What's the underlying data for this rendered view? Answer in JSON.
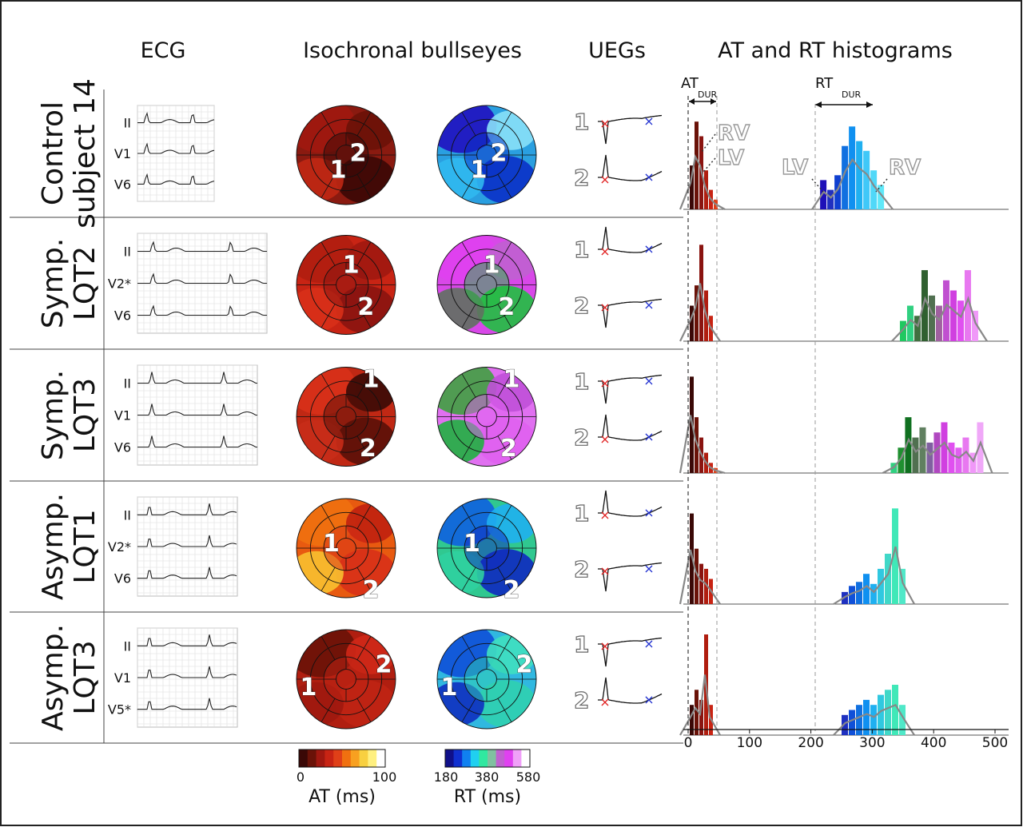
{
  "headers": {
    "ecg": "ECG",
    "bullseyes": "Isochronal bullseyes",
    "uegs": "UEGs",
    "histograms": "AT and RT histograms"
  },
  "rows": [
    {
      "label1": "Control",
      "label2": "subject 14",
      "leads": [
        "II",
        "V1",
        "V6"
      ],
      "at_base": "#8a1a10",
      "rt_base": "#2a9fe0",
      "at_regions": [
        "#a01810",
        "#3a0806",
        "#c02814",
        "#6a1208"
      ],
      "rt_regions": [
        "#2010c0",
        "#0a30c8",
        "#30b8f0",
        "#88e0f8"
      ],
      "num_positions_at": [
        [
          0.42,
          0.65
        ],
        [
          0.62,
          0.48
        ]
      ],
      "hist_at": [
        0.45,
        0.9,
        0.75,
        0.4,
        0.2,
        0.1
      ],
      "hist_rt": [
        0.3,
        0.2,
        0.35,
        0.65,
        0.85,
        0.7,
        0.6,
        0.4,
        0.25
      ],
      "hist_rt_start": 215,
      "rt_colors": [
        "#1e10b8",
        "#2030c0",
        "#1040d0",
        "#1070e0",
        "#1090f0",
        "#20b0f0",
        "#40c8f8",
        "#50d8f8",
        "#60e8f8"
      ]
    },
    {
      "label1": "Symp.",
      "label2": "LQT2",
      "leads": [
        "II",
        "V2*",
        "V6"
      ],
      "at_base": "#c82414",
      "rt_base": "#d848e8",
      "at_regions": [
        "#b01e10",
        "#8a1410",
        "#d83018",
        "#a01810"
      ],
      "rt_regions": [
        "#e040f0",
        "#20c040",
        "#607060",
        "#c060d0"
      ],
      "num_positions_at": [
        [
          0.55,
          0.3
        ],
        [
          0.7,
          0.72
        ]
      ],
      "hist_at": [
        0.35,
        0.55,
        0.95,
        0.5,
        0.25
      ],
      "hist_rt": [
        0.2,
        0.35,
        0.25,
        0.7,
        0.45,
        0.35,
        0.6,
        0.5,
        0.4,
        0.7,
        0.3
      ],
      "hist_rt_start": 345,
      "rt_colors": [
        "#20c860",
        "#30d080",
        "#407040",
        "#306030",
        "#507050",
        "#a060a0",
        "#c050d0",
        "#d040e0",
        "#e050f0",
        "#e878f0",
        "#f098f8"
      ]
    },
    {
      "label1": "Symp.",
      "label2": "LQT3",
      "leads": [
        "II",
        "V1",
        "V6"
      ],
      "at_base": "#c02814",
      "rt_base": "#e070f0",
      "at_regions": [
        "#d83018",
        "#5a1008",
        "#c82c18",
        "#3a0a06"
      ],
      "rt_regions": [
        "#40a040",
        "#e060f0",
        "#20b040",
        "#c050d8"
      ],
      "num_positions_at": [
        [
          0.75,
          0.12
        ],
        [
          0.72,
          0.82
        ]
      ],
      "hist_at": [
        0.95,
        0.55,
        0.35,
        0.2,
        0.1,
        0.05
      ],
      "hist_rt": [
        0.1,
        0.25,
        0.55,
        0.35,
        0.45,
        0.3,
        0.4,
        0.5,
        0.3,
        0.25,
        0.35,
        0.2,
        0.5
      ],
      "hist_rt_start": 330,
      "rt_colors": [
        "#30d080",
        "#209030",
        "#107020",
        "#507050",
        "#608060",
        "#8060a0",
        "#b048c0",
        "#d040e0",
        "#e050f0",
        "#e060f0",
        "#e878f0",
        "#f098f8",
        "#f0a8f8"
      ]
    },
    {
      "label1": "Asymp.",
      "label2": "LQT1",
      "leads": [
        "II",
        "V2*",
        "V6"
      ],
      "at_base": "#e85a10",
      "rt_base": "#30c890",
      "at_regions": [
        "#f07010",
        "#d83018",
        "#f8c030",
        "#c02010"
      ],
      "rt_regions": [
        "#1060e0",
        "#1028c0",
        "#30d0a0",
        "#20b0f0"
      ],
      "num_positions_at": [
        [
          0.35,
          0.45
        ],
        [
          0.75,
          0.92
        ]
      ],
      "hist_at": [
        0.9,
        0.55,
        0.4,
        0.35,
        0.25
      ],
      "hist_rt": [
        0.12,
        0.18,
        0.22,
        0.3,
        0.2,
        0.35,
        0.5,
        0.95,
        0.35
      ],
      "hist_rt_start": 250,
      "rt_colors": [
        "#1e30c0",
        "#1050d8",
        "#1070e0",
        "#1090f0",
        "#20b0f0",
        "#30c8e0",
        "#40d8c8",
        "#40e8b8",
        "#50e8c8"
      ]
    },
    {
      "label1": "Asymp.",
      "label2": "LQT3",
      "leads": [
        "II",
        "V1",
        "V5*"
      ],
      "at_base": "#b01e10",
      "rt_base": "#30b8e0",
      "at_regions": [
        "#6a1208",
        "#c02414",
        "#a01810",
        "#d02818"
      ],
      "rt_regions": [
        "#1050d8",
        "#30d0b0",
        "#1030c0",
        "#40e0c0"
      ],
      "num_positions_at": [
        [
          0.12,
          0.58
        ],
        [
          0.88,
          0.35
        ]
      ],
      "hist_at": [
        0.3,
        0.45,
        0.35,
        1.0,
        0.3
      ],
      "hist_rt": [
        0.2,
        0.25,
        0.3,
        0.35,
        0.3,
        0.4,
        0.45,
        0.5,
        0.3
      ],
      "hist_rt_start": 250,
      "rt_colors": [
        "#1e30c0",
        "#1050d8",
        "#1070e0",
        "#1090f0",
        "#20b0f0",
        "#30c8e0",
        "#40d8c8",
        "#40e8b8",
        "#50e8c8"
      ]
    }
  ],
  "bullseye_numbers": [
    "1",
    "2"
  ],
  "ueg_numbers": [
    "1",
    "2"
  ],
  "x_ticks": [
    0,
    100,
    200,
    300,
    400,
    500
  ],
  "x_range": [
    0,
    520
  ],
  "annotations": {
    "at_dur_main": "AT",
    "at_dur_sub": "DUR",
    "rt_dur_main": "RT",
    "rt_dur_sub": "DUR",
    "rv": "RV",
    "lv": "LV"
  },
  "colorbars": {
    "at": {
      "ticks": [
        "0",
        "100"
      ],
      "label": "AT (ms)",
      "colors": [
        "#3a0806",
        "#6a1208",
        "#a01810",
        "#c82414",
        "#e04018",
        "#f07010",
        "#f8a020",
        "#f8d040",
        "#fff080",
        "#ffffff"
      ]
    },
    "rt": {
      "ticks": [
        "180",
        "380",
        "580"
      ],
      "label": "RT (ms)",
      "colors": [
        "#10108a",
        "#1030d0",
        "#1080f0",
        "#20d0f0",
        "#30e8a0",
        "#80c0a0",
        "#c060d0",
        "#e040f0",
        "#f0a0f8",
        "#ffffff"
      ]
    }
  }
}
